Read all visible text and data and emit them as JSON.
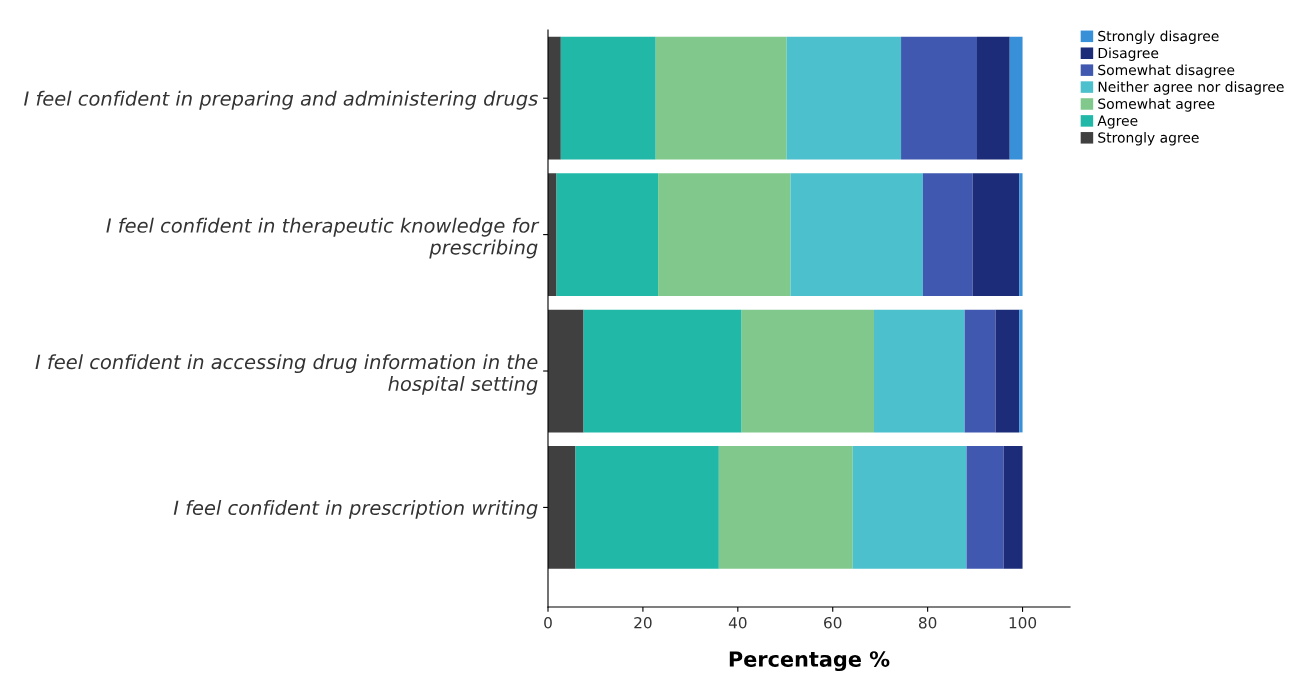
{
  "chart_data": {
    "type": "bar",
    "orientation": "horizontal",
    "stacked": true,
    "xlabel": "Percentage %",
    "categories": [
      "I feel confident in preparing and administering drugs",
      "I feel confident in therapeutic knowledge for\nprescribing",
      "I feel confident in accessing drug information in the\nhospital setting",
      "I feel confident in prescription writing"
    ],
    "series": [
      {
        "name": "Strongly agree",
        "color": "#404040",
        "values": [
          2.7,
          1.8,
          7.5,
          5.8
        ]
      },
      {
        "name": "Agree",
        "color": "#22b8a8",
        "values": [
          20.0,
          21.4,
          33.3,
          30.2
        ]
      },
      {
        "name": "Somewhat agree",
        "color": "#80c88c",
        "values": [
          27.6,
          27.9,
          27.9,
          28.2
        ]
      },
      {
        "name": "Neither agree nor disagree",
        "color": "#4cc0cc",
        "values": [
          24.1,
          27.9,
          19.1,
          24.0
        ]
      },
      {
        "name": "Somewhat disagree",
        "color": "#4058b0",
        "values": [
          16.0,
          10.5,
          6.5,
          7.8
        ]
      },
      {
        "name": "Disagree",
        "color": "#1c2c78",
        "values": [
          6.9,
          9.8,
          5.0,
          4.0
        ]
      },
      {
        "name": "Strongly disagree",
        "color": "#3890d8",
        "values": [
          2.7,
          0.7,
          0.7,
          0.0
        ]
      }
    ],
    "xlim": [
      0,
      110
    ],
    "xticks": [
      0,
      20,
      40,
      60,
      80,
      100
    ],
    "grid": false,
    "legend": "top right"
  }
}
